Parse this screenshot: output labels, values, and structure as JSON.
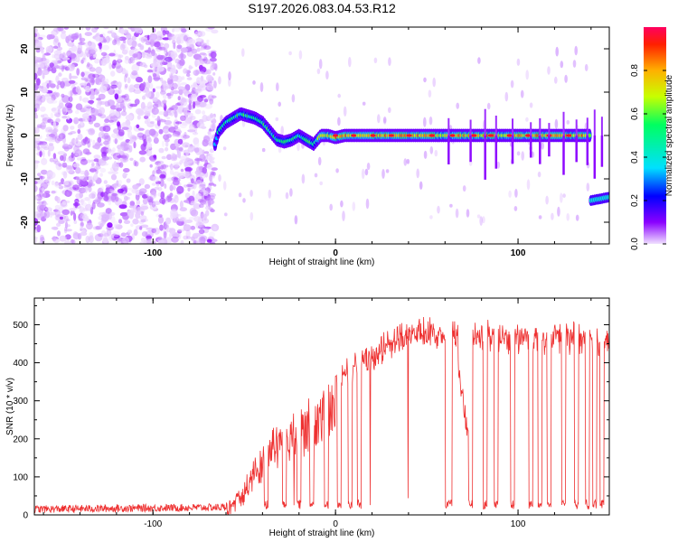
{
  "figure_title": "S197.2026.083.04.53.R12",
  "chart_data": [
    {
      "type": "heatmap",
      "title": "S197.2026.083.04.53.R12",
      "xlabel": "Height of straight line (km)",
      "ylabel": "Frequency (Hz)",
      "xlim": [
        -165,
        150
      ],
      "ylim": [
        -25,
        25
      ],
      "xticks": [
        -100,
        0,
        100
      ],
      "xtick_labels": [
        "-100",
        "0",
        "100"
      ],
      "yticks": [
        -20,
        -10,
        0,
        10,
        20
      ],
      "ytick_labels": [
        "-20",
        "-10",
        "0",
        "10",
        "20"
      ],
      "colorbar": {
        "label": "Normalized spectral amplitude",
        "range": [
          0,
          1
        ],
        "ticks": [
          0.0,
          0.2,
          0.4,
          0.6,
          0.8
        ],
        "tick_labels": [
          "0.0",
          "0.2",
          "0.4",
          "0.6",
          "0.8"
        ],
        "colormap": [
          "#f0e0ff",
          "#8a00ff",
          "#0000ff",
          "#00e0ff",
          "#00ff60",
          "#c8ff00",
          "#ffb000",
          "#ff2000",
          "#ff0060"
        ]
      },
      "regions": [
        {
          "name": "noise",
          "x_range": [
            -165,
            -66
          ],
          "freq_range": [
            -25,
            25
          ],
          "amplitude": 0.05
        },
        {
          "name": "carrier",
          "x_range": [
            -66,
            140
          ],
          "freq_approx": 0,
          "amplitude_max": 1.0
        },
        {
          "name": "offset_carrier",
          "x_range": [
            140,
            150
          ],
          "freq_approx": -15,
          "amplitude": 0.4
        }
      ],
      "carrier_track": {
        "x": [
          -66,
          -64,
          -60,
          -56,
          -52,
          -48,
          -44,
          -40,
          -36,
          -32,
          -28,
          -24,
          -20,
          -16,
          -12,
          -8,
          -4,
          0,
          5,
          10,
          20,
          140
        ],
        "freq": [
          -2,
          1,
          3,
          4,
          5,
          4.5,
          4,
          3,
          1,
          -1,
          -1.5,
          -1,
          0,
          -1,
          -2,
          0,
          0,
          -0.5,
          0,
          0,
          0,
          0
        ]
      }
    },
    {
      "type": "line",
      "xlabel": "Height of straight line (km)",
      "ylabel": "SNR (10 * v/v)",
      "xlim": [
        -165,
        150
      ],
      "ylim": [
        0,
        570
      ],
      "xticks": [
        -100,
        0,
        100
      ],
      "xtick_labels": [
        "-100",
        "0",
        "100"
      ],
      "yticks": [
        0,
        100,
        200,
        300,
        400,
        500
      ],
      "ytick_labels": [
        "0",
        "100",
        "200",
        "300",
        "400",
        "500"
      ],
      "color": "#ee3030",
      "envelope": {
        "x": [
          -165,
          -60,
          -52,
          -40,
          -30,
          -20,
          -10,
          0,
          10,
          20,
          30,
          40,
          50,
          60,
          150
        ],
        "snr": [
          15,
          20,
          60,
          180,
          250,
          290,
          320,
          370,
          410,
          440,
          480,
          500,
          510,
          500,
          490
        ]
      },
      "dropouts_x": [
        -38,
        -28,
        -20,
        -13,
        -5,
        2,
        8,
        13,
        62,
        74,
        82,
        88,
        97,
        107,
        112,
        117,
        125,
        132,
        138,
        142,
        146
      ]
    }
  ]
}
